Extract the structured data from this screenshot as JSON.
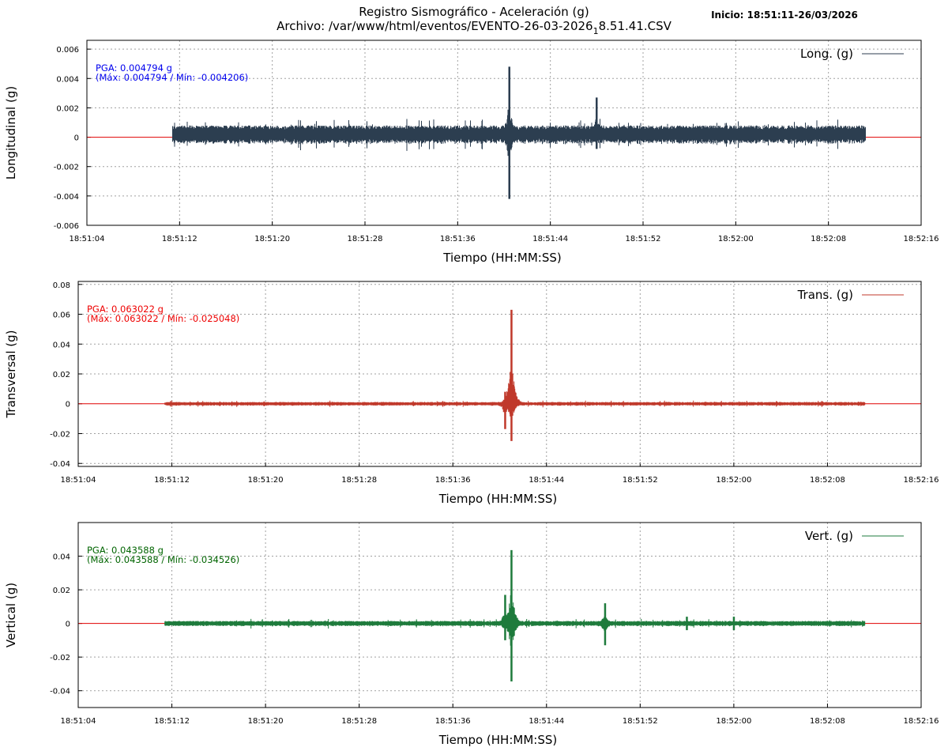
{
  "header": {
    "title_line1": "Registro Sismográfico - Aceleración (g)",
    "title_line2_prefix": "Archivo: /var/www/html/eventos/EVENTO-26-03-2026",
    "title_line2_sub": "1",
    "title_line2_suffix": "8.51.41.CSV",
    "inicio": "Inicio: 18:51:11-26/03/2026"
  },
  "colors": {
    "zero_line": "#e00000",
    "grid": "#a0a0a0"
  },
  "chart_data": [
    {
      "type": "line",
      "channel": "long",
      "ylabel": "Longitudinal (g)",
      "xlabel": "Tiempo (HH:MM:SS)",
      "legend": "Long. (g)",
      "legend_position": "top-right",
      "color": "#2c3e50",
      "pga_color": "#0000ee",
      "pga_text": "PGA: 0.004794 g",
      "range_text": "(Máx: 0.004794 / Mín: -0.004206)",
      "pga": 0.004794,
      "max": 0.004794,
      "min": -0.004206,
      "xlim": [
        "18:51:04",
        "18:52:16"
      ],
      "x_ticks": [
        "18:51:04",
        "18:51:12",
        "18:51:20",
        "18:51:28",
        "18:51:36",
        "18:51:44",
        "18:51:52",
        "18:52:00",
        "18:52:08",
        "18:52:16"
      ],
      "ylim": [
        -0.006,
        0.0066
      ],
      "y_ticks": [
        "-0.006",
        "-0.004",
        "-0.002",
        "0",
        "0.002",
        "0.004",
        "0.006"
      ],
      "y_tick_values": [
        -0.006,
        -0.004,
        -0.002,
        0,
        0.002,
        0.004,
        0.006
      ],
      "signal_window": [
        "18:51:11",
        "18:52:11"
      ],
      "offset": 0.0002,
      "noise_amplitude": 0.0006,
      "events": [
        {
          "t": "18:51:40",
          "peak": 0.0048,
          "trough": -0.0042
        },
        {
          "t": "18:51:40",
          "peak": 0.0024,
          "trough": -0.0038
        },
        {
          "t": "18:51:48",
          "peak": 0.0027,
          "trough": -0.0008
        }
      ],
      "grid": true
    },
    {
      "type": "line",
      "channel": "trans",
      "ylabel": "Transversal (g)",
      "xlabel": "Tiempo (HH:MM:SS)",
      "legend": "Trans. (g)",
      "legend_position": "top-right",
      "color": "#c0392b",
      "pga_color": "#ee0000",
      "pga_text": "PGA: 0.063022 g",
      "range_text": "(Máx: 0.063022 / Mín: -0.025048)",
      "pga": 0.063022,
      "max": 0.063022,
      "min": -0.025048,
      "xlim": [
        "18:51:04",
        "18:52:16"
      ],
      "x_ticks": [
        "18:51:04",
        "18:51:12",
        "18:51:20",
        "18:51:28",
        "18:51:36",
        "18:51:44",
        "18:51:52",
        "18:52:00",
        "18:52:08",
        "18:52:16"
      ],
      "ylim": [
        -0.042,
        0.082
      ],
      "y_ticks": [
        "-0.04",
        "-0.02",
        "0",
        "0.02",
        "0.04",
        "0.06",
        "0.08"
      ],
      "y_tick_values": [
        -0.04,
        -0.02,
        0,
        0.02,
        0.04,
        0.06,
        0.08
      ],
      "signal_window": [
        "18:51:11",
        "18:52:11"
      ],
      "offset": 0,
      "noise_amplitude": 0.0012,
      "events": [
        {
          "t": "18:51:40",
          "peak": 0.008,
          "trough": -0.017
        },
        {
          "t": "18:51:41",
          "peak": 0.063,
          "trough": -0.025
        }
      ],
      "grid": true
    },
    {
      "type": "line",
      "channel": "vert",
      "ylabel": "Vertical (g)",
      "xlabel": "Tiempo (HH:MM:SS)",
      "legend": "Vert. (g)",
      "legend_position": "top-right",
      "color": "#1e7b3c",
      "pga_color": "#006400",
      "pga_text": "PGA: 0.043588 g",
      "range_text": "(Máx: 0.043588 / Mín: -0.034526)",
      "pga": 0.043588,
      "max": 0.043588,
      "min": -0.034526,
      "xlim": [
        "18:51:04",
        "18:52:16"
      ],
      "x_ticks": [
        "18:51:04",
        "18:51:12",
        "18:51:20",
        "18:51:28",
        "18:51:36",
        "18:51:44",
        "18:51:52",
        "18:52:00",
        "18:52:08",
        "18:52:16"
      ],
      "ylim": [
        -0.05,
        0.06
      ],
      "y_ticks": [
        "-0.04",
        "-0.02",
        "0",
        "0.02",
        "0.04"
      ],
      "y_tick_values": [
        -0.04,
        -0.02,
        0,
        0.02,
        0.04
      ],
      "signal_window": [
        "18:51:11",
        "18:52:11"
      ],
      "offset": 0,
      "noise_amplitude": 0.0015,
      "events": [
        {
          "t": "18:51:40",
          "peak": 0.017,
          "trough": -0.01
        },
        {
          "t": "18:51:41",
          "peak": 0.0436,
          "trough": -0.0345
        },
        {
          "t": "18:51:49",
          "peak": 0.012,
          "trough": -0.013
        },
        {
          "t": "18:51:56",
          "peak": 0.004,
          "trough": -0.004
        },
        {
          "t": "18:52:00",
          "peak": 0.004,
          "trough": -0.004
        }
      ],
      "grid": true
    }
  ]
}
